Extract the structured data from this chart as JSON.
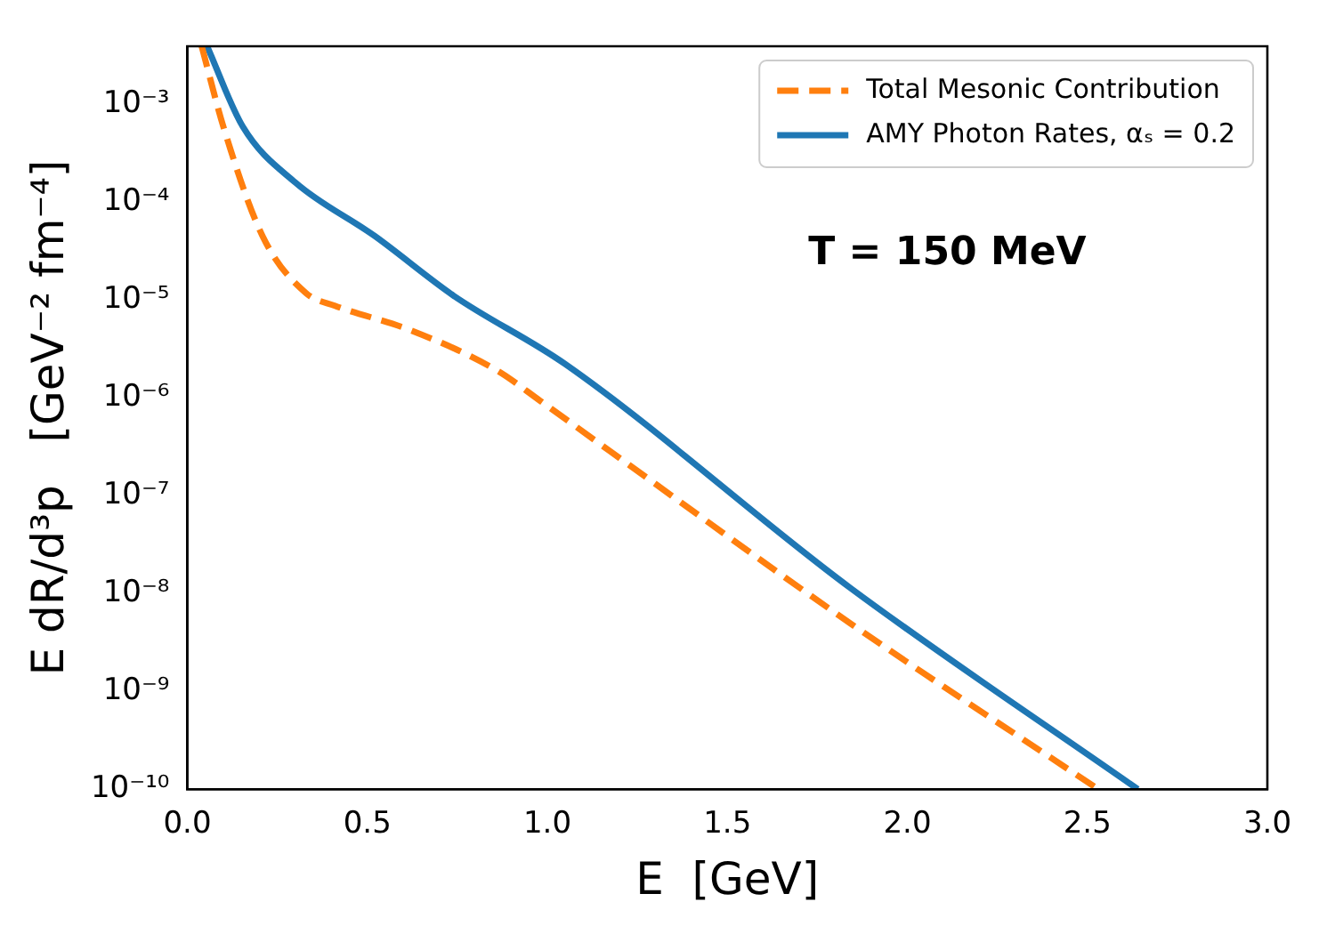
{
  "chart_data": {
    "type": "line",
    "xlabel": "E  [GeV]",
    "ylabel": "E dR/d³p   [GeV⁻² fm⁻⁴]",
    "annotations": [
      "T = 150 MeV"
    ],
    "log": "y",
    "legend": "top right",
    "grid": false,
    "xlim": [
      0,
      3
    ],
    "xticks": [
      {
        "value": 0,
        "label": "0.0"
      },
      0.5,
      {
        "value": 1,
        "label": "1.0"
      },
      1.5,
      {
        "value": 2,
        "label": "2.0"
      },
      2.5,
      {
        "value": 3,
        "label": "3.0"
      }
    ],
    "ylim": [
      1e-10,
      0.0039
    ],
    "yticks": [
      {
        "value": 1e-10,
        "label": "10⁻¹⁰"
      },
      {
        "value": 1e-09,
        "label": "10⁻⁹"
      },
      {
        "value": 1e-08,
        "label": "10⁻⁸"
      },
      {
        "value": 1e-07,
        "label": "10⁻⁷"
      },
      {
        "value": 1e-06,
        "label": "10⁻⁶"
      },
      {
        "value": 1e-05,
        "label": "10⁻⁵"
      },
      {
        "value": 0.0001,
        "label": "10⁻⁴"
      },
      {
        "value": 0.001,
        "label": "10⁻³"
      }
    ],
    "series": [
      {
        "name": "Total Mesonic Contribution",
        "color": "#ff7f0e",
        "line_style": "dashed",
        "x": [
          0.04,
          0.1,
          0.21,
          0.33,
          0.41,
          0.62,
          0.86,
          0.98,
          1.16,
          1.84,
          2.53
        ],
        "values": [
          0.0039,
          0.00059,
          4.4e-05,
          1.17e-05,
          8.7e-06,
          4.9e-06,
          1.9e-06,
          9.3e-07,
          3.1e-07,
          5e-09,
          1e-10
        ]
      },
      {
        "name": "AMY Photon Rates, αₛ = 0.2",
        "color": "#1f77b4",
        "line_style": "solid",
        "x": [
          0.055,
          0.154,
          0.3,
          0.52,
          0.74,
          1.05,
          1.84,
          2.64
        ],
        "values": [
          0.0039,
          0.00059,
          0.000158,
          4.5e-05,
          1.1e-05,
          2.2e-06,
          1.15e-08,
          1e-10
        ]
      }
    ]
  }
}
